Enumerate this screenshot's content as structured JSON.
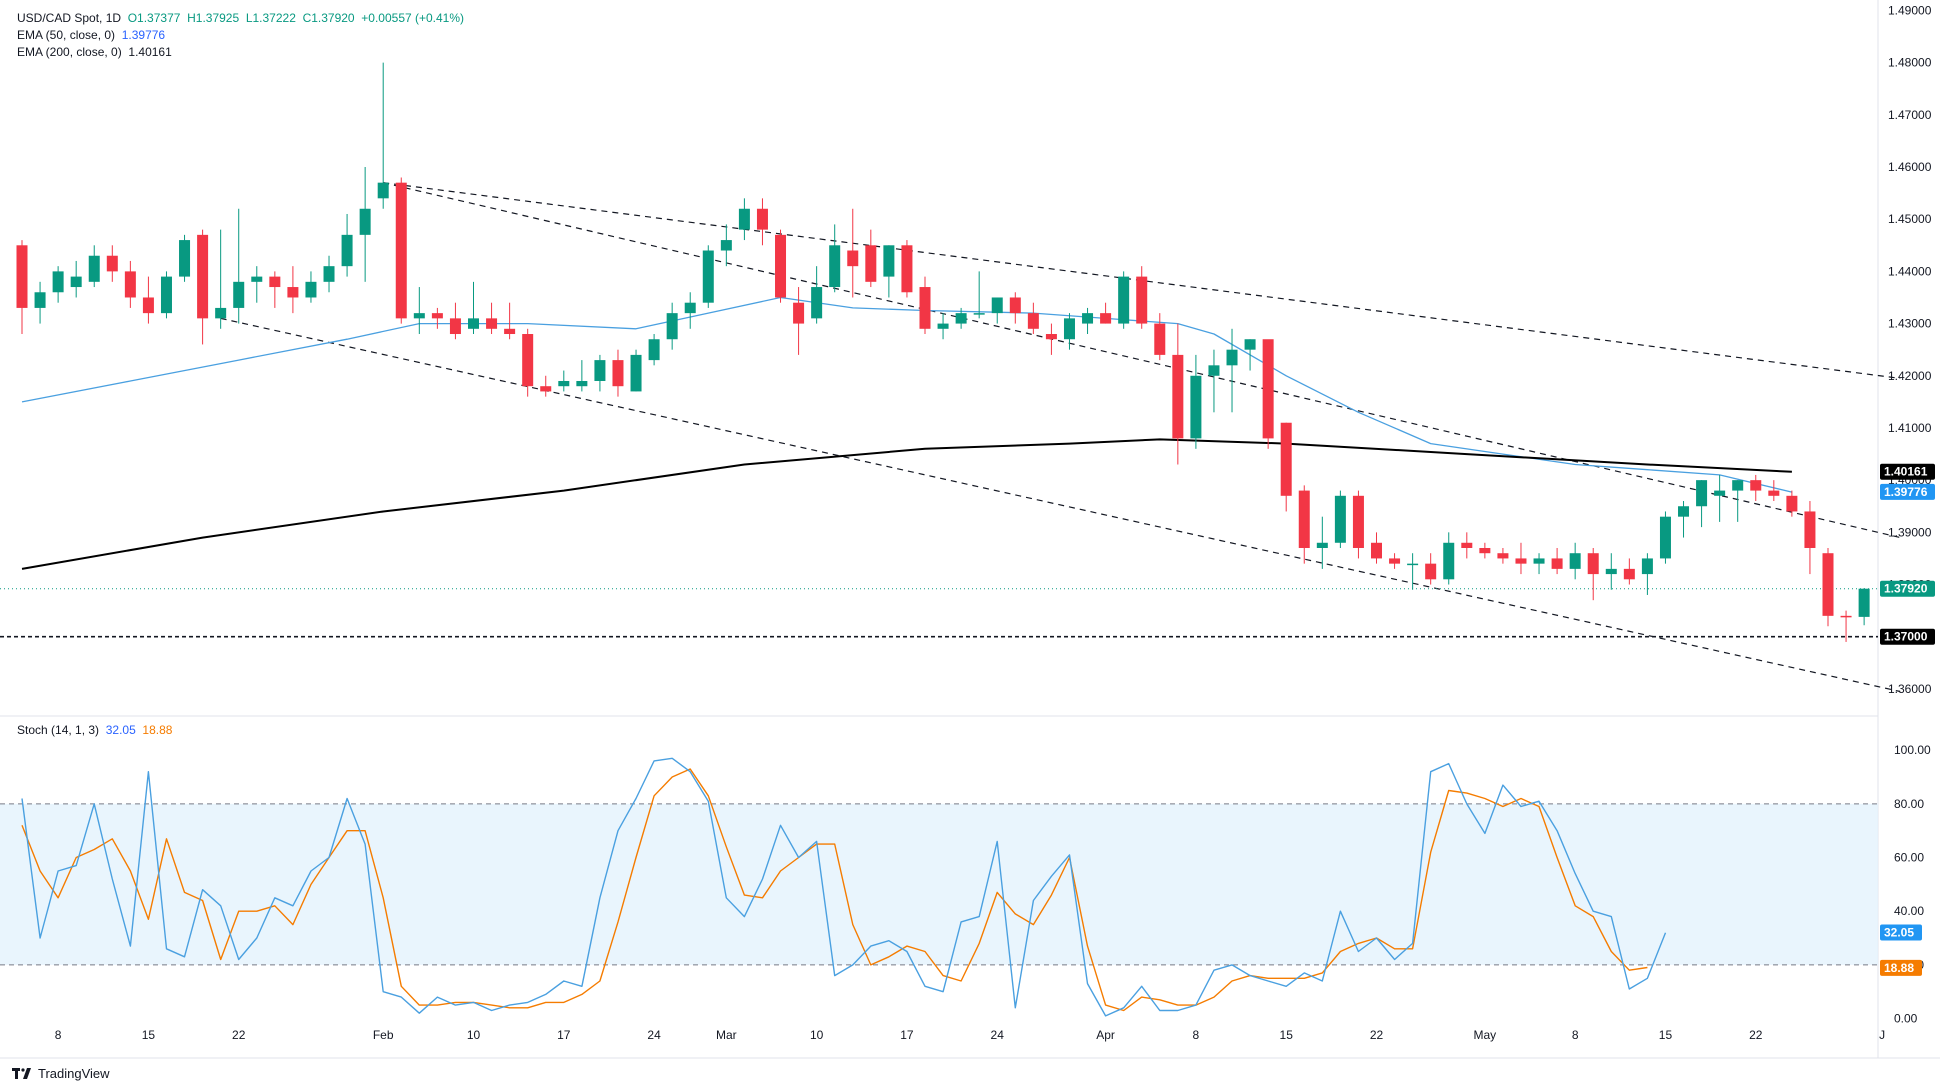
{
  "header": {
    "symbol_line": "USD/CAD Spot, 1D",
    "ohlc": {
      "o": "O1.37377",
      "h": "H1.37925",
      "l": "L1.37222",
      "c": "C1.37920",
      "chg": "+0.00557 (+0.41%)"
    },
    "ema50_label": "EMA (50, close, 0)",
    "ema50_value": "1.39776",
    "ema200_label": "EMA (200, close, 0)",
    "ema200_value": "1.40161",
    "stoch_label": "Stoch (14, 1, 3)",
    "stoch_k": "32.05",
    "stoch_d": "18.88"
  },
  "brand": "TradingView",
  "colors": {
    "up": "#089981",
    "down": "#f23645",
    "ema50": "#4aa0e0",
    "ema200": "#000000",
    "stoch_k": "#4aa0e0",
    "stoch_d": "#f57c00"
  },
  "chart_data": {
    "type": "candlestick",
    "price_axis": {
      "min": 1.355,
      "max": 1.492,
      "ticks": [
        "1.36000",
        "1.37000",
        "1.38000",
        "1.39000",
        "1.40000",
        "1.41000",
        "1.42000",
        "1.43000",
        "1.44000",
        "1.45000",
        "1.46000",
        "1.47000",
        "1.48000",
        "1.49000"
      ]
    },
    "x_labels": [
      {
        "i": 2,
        "t": "8"
      },
      {
        "i": 7,
        "t": "15"
      },
      {
        "i": 12,
        "t": "22"
      },
      {
        "i": 20,
        "t": "Feb"
      },
      {
        "i": 25,
        "t": "10"
      },
      {
        "i": 30,
        "t": "17"
      },
      {
        "i": 35,
        "t": "24"
      },
      {
        "i": 39,
        "t": "Mar"
      },
      {
        "i": 44,
        "t": "10"
      },
      {
        "i": 49,
        "t": "17"
      },
      {
        "i": 54,
        "t": "24"
      },
      {
        "i": 60,
        "t": "Apr"
      },
      {
        "i": 65,
        "t": "8"
      },
      {
        "i": 70,
        "t": "15"
      },
      {
        "i": 75,
        "t": "22"
      },
      {
        "i": 81,
        "t": "May"
      },
      {
        "i": 86,
        "t": "8"
      },
      {
        "i": 91,
        "t": "15"
      },
      {
        "i": 96,
        "t": "22"
      },
      {
        "i": 103,
        "t": "J"
      }
    ],
    "candles": [
      [
        1.445,
        1.446,
        1.428,
        1.433
      ],
      [
        1.433,
        1.438,
        1.43,
        1.436
      ],
      [
        1.436,
        1.441,
        1.434,
        1.44
      ],
      [
        1.437,
        1.442,
        1.435,
        1.439
      ],
      [
        1.438,
        1.445,
        1.437,
        1.443
      ],
      [
        1.443,
        1.445,
        1.438,
        1.44
      ],
      [
        1.44,
        1.442,
        1.433,
        1.435
      ],
      [
        1.435,
        1.439,
        1.43,
        1.432
      ],
      [
        1.432,
        1.44,
        1.431,
        1.439
      ],
      [
        1.439,
        1.447,
        1.438,
        1.446
      ],
      [
        1.447,
        1.448,
        1.426,
        1.431
      ],
      [
        1.431,
        1.448,
        1.429,
        1.433
      ],
      [
        1.433,
        1.452,
        1.43,
        1.438
      ],
      [
        1.438,
        1.441,
        1.434,
        1.439
      ],
      [
        1.439,
        1.44,
        1.433,
        1.437
      ],
      [
        1.437,
        1.441,
        1.432,
        1.435
      ],
      [
        1.435,
        1.44,
        1.434,
        1.438
      ],
      [
        1.438,
        1.443,
        1.436,
        1.441
      ],
      [
        1.441,
        1.451,
        1.439,
        1.447
      ],
      [
        1.447,
        1.46,
        1.438,
        1.452
      ],
      [
        1.454,
        1.48,
        1.452,
        1.457
      ],
      [
        1.457,
        1.458,
        1.43,
        1.431
      ],
      [
        1.431,
        1.437,
        1.428,
        1.432
      ],
      [
        1.432,
        1.433,
        1.429,
        1.431
      ],
      [
        1.431,
        1.434,
        1.427,
        1.428
      ],
      [
        1.429,
        1.438,
        1.428,
        1.431
      ],
      [
        1.431,
        1.434,
        1.428,
        1.429
      ],
      [
        1.429,
        1.434,
        1.427,
        1.428
      ],
      [
        1.428,
        1.429,
        1.416,
        1.418
      ],
      [
        1.418,
        1.42,
        1.416,
        1.417
      ],
      [
        1.418,
        1.421,
        1.417,
        1.419
      ],
      [
        1.418,
        1.423,
        1.417,
        1.419
      ],
      [
        1.419,
        1.424,
        1.417,
        1.423
      ],
      [
        1.423,
        1.425,
        1.416,
        1.418
      ],
      [
        1.417,
        1.425,
        1.417,
        1.424
      ],
      [
        1.423,
        1.428,
        1.422,
        1.427
      ],
      [
        1.427,
        1.434,
        1.425,
        1.432
      ],
      [
        1.432,
        1.436,
        1.429,
        1.434
      ],
      [
        1.434,
        1.445,
        1.433,
        1.444
      ],
      [
        1.444,
        1.449,
        1.441,
        1.446
      ],
      [
        1.448,
        1.454,
        1.446,
        1.452
      ],
      [
        1.452,
        1.454,
        1.445,
        1.448
      ],
      [
        1.447,
        1.448,
        1.434,
        1.435
      ],
      [
        1.434,
        1.437,
        1.424,
        1.43
      ],
      [
        1.431,
        1.441,
        1.43,
        1.437
      ],
      [
        1.437,
        1.449,
        1.436,
        1.445
      ],
      [
        1.444,
        1.452,
        1.435,
        1.441
      ],
      [
        1.445,
        1.448,
        1.437,
        1.438
      ],
      [
        1.439,
        1.445,
        1.435,
        1.445
      ],
      [
        1.445,
        1.446,
        1.435,
        1.436
      ],
      [
        1.437,
        1.439,
        1.428,
        1.429
      ],
      [
        1.429,
        1.432,
        1.427,
        1.43
      ],
      [
        1.43,
        1.433,
        1.429,
        1.432
      ],
      [
        1.432,
        1.44,
        1.431,
        1.432
      ],
      [
        1.432,
        1.435,
        1.43,
        1.435
      ],
      [
        1.435,
        1.436,
        1.43,
        1.432
      ],
      [
        1.432,
        1.434,
        1.428,
        1.429
      ],
      [
        1.428,
        1.43,
        1.424,
        1.427
      ],
      [
        1.427,
        1.432,
        1.425,
        1.431
      ],
      [
        1.43,
        1.433,
        1.428,
        1.432
      ],
      [
        1.432,
        1.434,
        1.43,
        1.43
      ],
      [
        1.43,
        1.44,
        1.429,
        1.439
      ],
      [
        1.439,
        1.441,
        1.429,
        1.43
      ],
      [
        1.43,
        1.432,
        1.423,
        1.424
      ],
      [
        1.424,
        1.43,
        1.403,
        1.408
      ],
      [
        1.408,
        1.424,
        1.406,
        1.42
      ],
      [
        1.42,
        1.425,
        1.413,
        1.422
      ],
      [
        1.422,
        1.429,
        1.413,
        1.425
      ],
      [
        1.425,
        1.427,
        1.421,
        1.427
      ],
      [
        1.427,
        1.426,
        1.406,
        1.408
      ],
      [
        1.411,
        1.411,
        1.394,
        1.397
      ],
      [
        1.398,
        1.399,
        1.384,
        1.387
      ],
      [
        1.387,
        1.393,
        1.383,
        1.388
      ],
      [
        1.388,
        1.398,
        1.387,
        1.397
      ],
      [
        1.397,
        1.398,
        1.385,
        1.387
      ],
      [
        1.388,
        1.39,
        1.384,
        1.385
      ],
      [
        1.385,
        1.386,
        1.383,
        1.384
      ],
      [
        1.384,
        1.386,
        1.379,
        1.384
      ],
      [
        1.384,
        1.386,
        1.38,
        1.381
      ],
      [
        1.381,
        1.39,
        1.38,
        1.388
      ],
      [
        1.388,
        1.39,
        1.385,
        1.387
      ],
      [
        1.387,
        1.388,
        1.385,
        1.386
      ],
      [
        1.386,
        1.387,
        1.384,
        1.385
      ],
      [
        1.385,
        1.388,
        1.382,
        1.384
      ],
      [
        1.384,
        1.386,
        1.382,
        1.385
      ],
      [
        1.385,
        1.387,
        1.382,
        1.383
      ],
      [
        1.383,
        1.388,
        1.381,
        1.386
      ],
      [
        1.386,
        1.387,
        1.377,
        1.382
      ],
      [
        1.382,
        1.386,
        1.379,
        1.383
      ],
      [
        1.383,
        1.385,
        1.38,
        1.381
      ],
      [
        1.382,
        1.386,
        1.378,
        1.385
      ],
      [
        1.385,
        1.394,
        1.384,
        1.393
      ],
      [
        1.393,
        1.396,
        1.389,
        1.395
      ],
      [
        1.395,
        1.4,
        1.391,
        1.4
      ],
      [
        1.397,
        1.401,
        1.392,
        1.398
      ],
      [
        1.398,
        1.4,
        1.392,
        1.4
      ],
      [
        1.4,
        1.401,
        1.396,
        1.398
      ],
      [
        1.398,
        1.4,
        1.396,
        1.397
      ],
      [
        1.397,
        1.398,
        1.393,
        1.394
      ],
      [
        1.394,
        1.396,
        1.382,
        1.387
      ],
      [
        1.386,
        1.387,
        1.372,
        1.374
      ],
      [
        1.374,
        1.375,
        1.369,
        1.3738
      ],
      [
        1.3738,
        1.3793,
        1.3722,
        1.3792
      ]
    ],
    "ema50": [
      [
        0,
        1.415
      ],
      [
        6,
        1.419
      ],
      [
        12,
        1.423
      ],
      [
        18,
        1.427
      ],
      [
        22,
        1.43
      ],
      [
        28,
        1.43
      ],
      [
        34,
        1.429
      ],
      [
        38,
        1.432
      ],
      [
        42,
        1.435
      ],
      [
        46,
        1.433
      ],
      [
        50,
        1.4325
      ],
      [
        56,
        1.432
      ],
      [
        60,
        1.431
      ],
      [
        64,
        1.43
      ],
      [
        66,
        1.428
      ],
      [
        70,
        1.42
      ],
      [
        74,
        1.413
      ],
      [
        78,
        1.407
      ],
      [
        82,
        1.405
      ],
      [
        86,
        1.403
      ],
      [
        90,
        1.402
      ],
      [
        94,
        1.401
      ],
      [
        98,
        1.3977
      ]
    ],
    "ema200": [
      [
        0,
        1.383
      ],
      [
        10,
        1.389
      ],
      [
        20,
        1.394
      ],
      [
        30,
        1.398
      ],
      [
        40,
        1.403
      ],
      [
        50,
        1.406
      ],
      [
        58,
        1.407
      ],
      [
        63,
        1.4078
      ],
      [
        70,
        1.407
      ],
      [
        80,
        1.405
      ],
      [
        90,
        1.403
      ],
      [
        98,
        1.4016
      ]
    ],
    "price_tags": [
      {
        "label": "1.40161",
        "bg": "#000000",
        "fg": "#ffffff",
        "price": 1.40161
      },
      {
        "label": "1.39776",
        "bg": "#2196f3",
        "fg": "#ffffff",
        "price": 1.39776
      },
      {
        "label": "1.37920",
        "bg": "#089981",
        "fg": "#ffffff",
        "price": 1.3792
      },
      {
        "label": "1.37000",
        "bg": "#000000",
        "fg": "#ffffff",
        "price": 1.37
      }
    ],
    "stoch_axis": {
      "min": -8,
      "max": 112,
      "ticks": [
        "0.00",
        "20.00",
        "40.00",
        "60.00",
        "80.00",
        "100.00"
      ]
    },
    "stoch_k": [
      82,
      30,
      55,
      57,
      80,
      52,
      27,
      92,
      26,
      23,
      48,
      42,
      22,
      30,
      45,
      42,
      55,
      60,
      82,
      65,
      10,
      8,
      2,
      8,
      5,
      6,
      3,
      5,
      6,
      9,
      14,
      12,
      45,
      70,
      82,
      96,
      97,
      92,
      81,
      45,
      38,
      52,
      72,
      60,
      66,
      16,
      20,
      27,
      29,
      25,
      12,
      10,
      36,
      38,
      66,
      4,
      44,
      53,
      61,
      13,
      1,
      4,
      12,
      3,
      3,
      5,
      18,
      20,
      16,
      14,
      12,
      17,
      14,
      40,
      25,
      30,
      22,
      28,
      92,
      95,
      80,
      69,
      87,
      79,
      81,
      70,
      54,
      40,
      38,
      11,
      15,
      32
    ],
    "stoch_d": [
      72,
      55,
      45,
      60,
      63,
      67,
      55,
      37,
      67,
      47,
      44,
      22,
      40,
      40,
      42,
      35,
      50,
      60,
      70,
      70,
      45,
      12,
      5,
      5,
      6,
      6,
      5,
      4,
      4,
      6,
      6,
      9,
      14,
      36,
      60,
      83,
      90,
      93,
      83,
      64,
      46,
      45,
      55,
      60,
      65,
      65,
      35,
      20,
      23,
      27,
      25,
      16,
      14,
      28,
      47,
      39,
      35,
      46,
      60,
      27,
      5,
      3,
      8,
      7,
      5,
      5,
      8,
      14,
      16,
      15,
      15,
      15,
      17,
      25,
      28,
      30,
      26,
      26,
      62,
      85,
      84,
      82,
      79,
      82,
      79,
      60,
      42,
      38,
      25,
      18,
      19
    ]
  }
}
